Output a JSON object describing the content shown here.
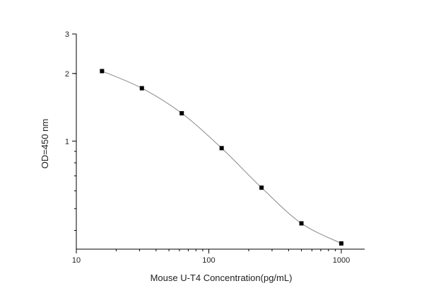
{
  "chart_data": {
    "type": "line",
    "xlabel": "Mouse U-T4  Concentration(pg/mL)",
    "ylabel": "OD=450 nm",
    "xscale": "log",
    "yscale": "log",
    "xlim": [
      10,
      1500
    ],
    "ylim": [
      0.33,
      3
    ],
    "x_ticks": [
      {
        "value": 10,
        "label": "10"
      },
      {
        "value": 100,
        "label": "100"
      },
      {
        "value": 1000,
        "label": "1000"
      }
    ],
    "y_ticks": [
      {
        "value": 1,
        "label": "1"
      },
      {
        "value": 2,
        "label": "2"
      },
      {
        "value": 3,
        "label": "3"
      }
    ],
    "grid": false,
    "marker": "square",
    "line_color": "#888888",
    "marker_color": "#000000",
    "series": [
      {
        "x": [
          15.625,
          31.25,
          62.5,
          125,
          250,
          500,
          1000
        ],
        "y": [
          2.05,
          1.72,
          1.33,
          0.93,
          0.62,
          0.43,
          0.35
        ]
      }
    ]
  }
}
